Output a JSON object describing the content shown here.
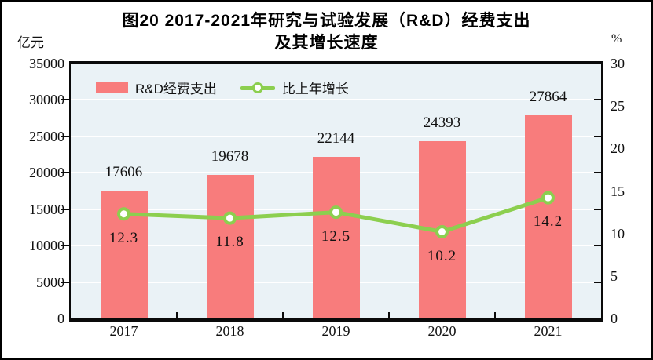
{
  "title": {
    "line1": "图20  2017-2021年研究与试验发展（R&D）经费支出",
    "line2": "及其增长速度"
  },
  "legend": {
    "bar_label": "R&D经费支出",
    "line_label": "比上年增长"
  },
  "chart_data": {
    "type": "bar",
    "title": "图20 2017-2021年研究与试验发展（R&D）经费支出及其增长速度",
    "categories": [
      "2017",
      "2018",
      "2019",
      "2020",
      "2021"
    ],
    "series": [
      {
        "name": "R&D经费支出",
        "type": "bar",
        "axis": "left",
        "values": [
          17606,
          19678,
          22144,
          24393,
          27864
        ],
        "labels": [
          "17606",
          "19678",
          "22144",
          "24393",
          "27864"
        ],
        "color": "#f87c7c"
      },
      {
        "name": "比上年增长",
        "type": "line",
        "axis": "right",
        "values": [
          12.3,
          11.8,
          12.5,
          10.2,
          14.2
        ],
        "labels": [
          "12.3",
          "11.8",
          "12.5",
          "10.2",
          "14.2"
        ],
        "color": "#8ccf4f"
      }
    ],
    "left_axis": {
      "unit": "亿元",
      "min": 0,
      "max": 35000,
      "step": 5000,
      "tick_labels": [
        "0",
        "5000",
        "10000",
        "15000",
        "20000",
        "25000",
        "30000",
        "35000"
      ]
    },
    "right_axis": {
      "unit": "%",
      "min": 0,
      "max": 30,
      "step": 5,
      "tick_labels": [
        "0",
        "5",
        "10",
        "15",
        "20",
        "25",
        "30"
      ]
    },
    "grid": true,
    "legend_position": "top-left-inside",
    "plot_background": "#eaf2f6",
    "gridline_color": "#ffffff"
  }
}
